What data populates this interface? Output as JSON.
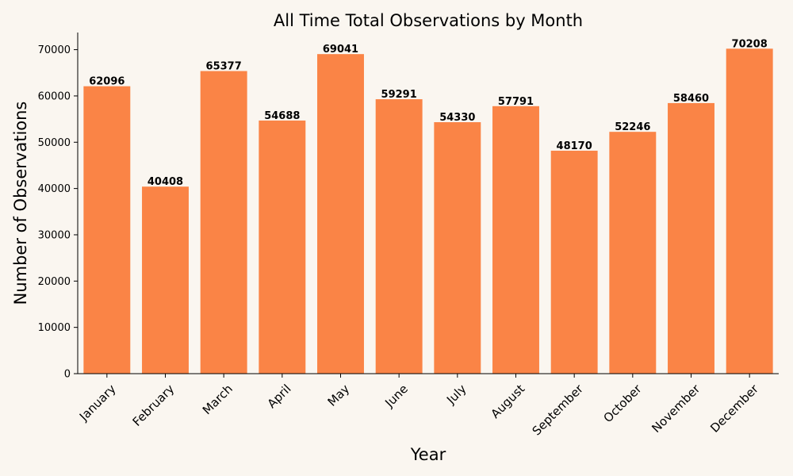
{
  "chart_data": {
    "type": "bar",
    "title": "All Time Total Observations by Month",
    "xlabel": "Year",
    "ylabel": "Number of Observations",
    "categories": [
      "January",
      "February",
      "March",
      "April",
      "May",
      "June",
      "July",
      "August",
      "September",
      "October",
      "November",
      "December"
    ],
    "values": [
      62096,
      40408,
      65377,
      54688,
      69041,
      59291,
      54330,
      57791,
      48170,
      52246,
      58460,
      70208
    ],
    "data_labels": [
      "62096",
      "40408",
      "65377",
      "54688",
      "69041",
      "59291",
      "54330",
      "57791",
      "48170",
      "52246",
      "58460",
      "70208"
    ],
    "ylim": [
      0,
      73700
    ],
    "yticks": [
      0,
      10000,
      20000,
      30000,
      40000,
      50000,
      60000,
      70000
    ],
    "ytick_labels": [
      "0",
      "10000",
      "20000",
      "30000",
      "40000",
      "50000",
      "60000",
      "70000"
    ],
    "grid": false,
    "legend": "none",
    "colors": {
      "bar": "#fa8446",
      "background": "#faf6f0"
    }
  }
}
